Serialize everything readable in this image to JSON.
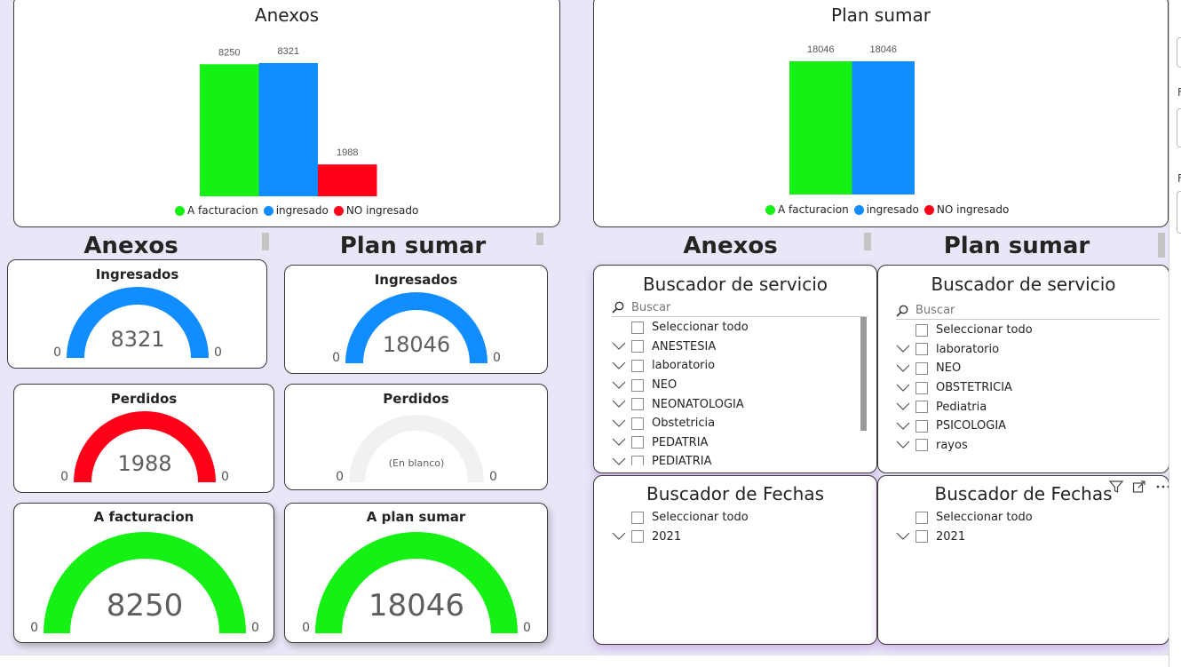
{
  "charts": {
    "anexos": {
      "title": "Anexos",
      "chart_data": {
        "type": "bar",
        "title": "Anexos",
        "categories": [
          "A facturacion",
          "ingresado",
          "NO ingresado"
        ],
        "values": [
          8250,
          8321,
          1988
        ],
        "colors": [
          "#15f015",
          "#118dff",
          "#ff0019"
        ],
        "ylim": [
          0,
          8321
        ],
        "grid": false,
        "legend": "bottom"
      }
    },
    "plan_sumar": {
      "title": "Plan sumar",
      "chart_data": {
        "type": "bar",
        "title": "Plan sumar",
        "categories": [
          "A facturacion",
          "ingresado",
          "NO ingresado"
        ],
        "values": [
          18046,
          18046,
          null
        ],
        "colors": [
          "#15f015",
          "#118dff",
          "#ff0019"
        ],
        "ylim": [
          0,
          18046
        ],
        "grid": false,
        "legend": "bottom"
      }
    }
  },
  "legend": {
    "items": [
      {
        "label": "A facturacion",
        "color": "#15f015"
      },
      {
        "label": "ingresado",
        "color": "#118dff"
      },
      {
        "label": "NO ingresado",
        "color": "#ff0019"
      }
    ]
  },
  "sections": {
    "anexos_left": "Anexos",
    "plan_left": "Plan sumar",
    "anexos_right": "Anexos",
    "plan_right": "Plan sumar"
  },
  "gauges": {
    "anexos_ingresados": {
      "title": "Ingresados",
      "value": "8321",
      "fill": 1.0,
      "min": "0",
      "max": "0",
      "color": "#118dff"
    },
    "anexos_perdidos": {
      "title": "Perdidos",
      "value": "1988",
      "fill": 1.0,
      "min": "0",
      "max": "0",
      "color": "#ff0019"
    },
    "anexos_facturacion": {
      "title": "A facturacion",
      "value": "8250",
      "fill": 1.0,
      "min": "0",
      "max": "0",
      "color": "#15f015"
    },
    "plan_ingresados": {
      "title": "Ingresados",
      "value": "18046",
      "fill": 1.0,
      "min": "0",
      "max": "0",
      "color": "#118dff"
    },
    "plan_perdidos": {
      "title": "Perdidos",
      "value": "(En blanco)",
      "fill": 0.0,
      "min": "0",
      "max": "0",
      "color": "#f1f1f1"
    },
    "plan_facturacion": {
      "title": "A plan sumar",
      "value": "18046",
      "fill": 1.0,
      "min": "0",
      "max": "0",
      "color": "#15f015"
    }
  },
  "slicers": {
    "servicio_anexos": {
      "title": "Buscador de servicio",
      "search_placeholder": "Buscar",
      "select_all": "Seleccionar todo",
      "items": [
        "ANESTESIA",
        "laboratorio",
        "NEO",
        "NEONATOLOGIA",
        "Obstetricia",
        "PEDATRIA",
        "PEDIATRIA"
      ]
    },
    "servicio_plan": {
      "title": "Buscador de servicio",
      "search_placeholder": "Buscar",
      "select_all": "Seleccionar todo",
      "items": [
        "laboratorio",
        "NEO",
        "OBSTETRICIA",
        "Pediatria",
        "PSICOLOGIA",
        "rayos"
      ]
    },
    "fechas_anexos": {
      "title": "Buscador de Fechas",
      "select_all": "Seleccionar todo",
      "items": [
        "2021"
      ]
    },
    "fechas_plan": {
      "title": "Buscador de Fechas",
      "select_all": "Seleccionar todo",
      "items": [
        "2021"
      ]
    }
  },
  "icons": {
    "filter": "filter-icon",
    "focus": "focus-mode-icon",
    "more": "more-options-icon",
    "search": "search-icon",
    "chevron": "chevron-down-icon"
  },
  "right_panel": {
    "frag1": "F",
    "frag2": "F"
  }
}
